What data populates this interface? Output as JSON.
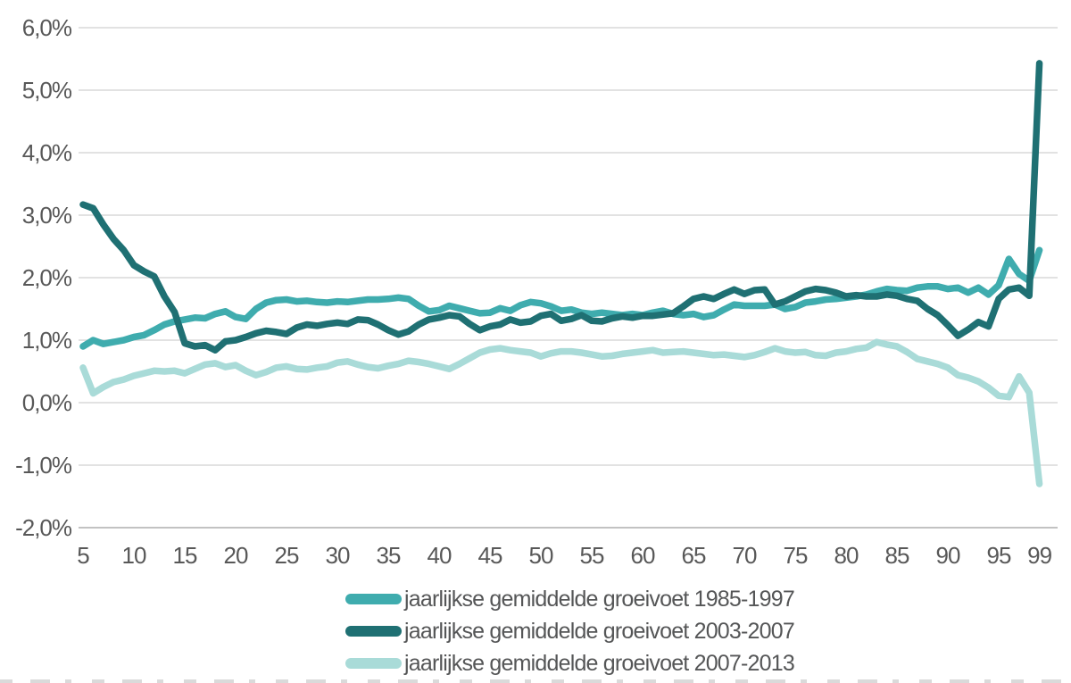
{
  "chart_data": {
    "type": "line",
    "title": "",
    "xlabel": "",
    "ylabel": "",
    "grid": true,
    "legend_position": "bottom",
    "ylim": [
      -2.0,
      6.0
    ],
    "x": [
      5,
      6,
      7,
      8,
      9,
      10,
      11,
      12,
      13,
      14,
      15,
      16,
      17,
      18,
      19,
      20,
      21,
      22,
      23,
      24,
      25,
      26,
      27,
      28,
      29,
      30,
      31,
      32,
      33,
      34,
      35,
      36,
      37,
      38,
      39,
      40,
      41,
      42,
      43,
      44,
      45,
      46,
      47,
      48,
      49,
      50,
      51,
      52,
      53,
      54,
      55,
      56,
      57,
      58,
      59,
      60,
      61,
      62,
      63,
      64,
      65,
      66,
      67,
      68,
      69,
      70,
      71,
      72,
      73,
      74,
      75,
      76,
      77,
      78,
      79,
      80,
      81,
      82,
      83,
      84,
      85,
      86,
      87,
      88,
      89,
      90,
      91,
      92,
      93,
      94,
      95,
      96,
      97,
      98,
      99
    ],
    "xticks": [
      5,
      10,
      15,
      20,
      25,
      30,
      35,
      40,
      45,
      50,
      55,
      60,
      65,
      70,
      75,
      80,
      85,
      90,
      95,
      99
    ],
    "yticks": [
      {
        "label": "6,0%",
        "value": 6.0
      },
      {
        "label": "5,0%",
        "value": 5.0
      },
      {
        "label": "4,0%",
        "value": 4.0
      },
      {
        "label": "3,0%",
        "value": 3.0
      },
      {
        "label": "2,0%",
        "value": 2.0
      },
      {
        "label": "1,0%",
        "value": 1.0
      },
      {
        "label": "0,0%",
        "value": 0.0
      },
      {
        "label": "-1,0%",
        "value": -1.0
      },
      {
        "label": "-2,0%",
        "value": -2.0
      }
    ],
    "series": [
      {
        "name": "jaarlijkse gemiddelde groeivoet 1985-1997",
        "color": "#3FACAE",
        "values": [
          0.9,
          1.0,
          0.94,
          0.97,
          1.0,
          1.05,
          1.08,
          1.16,
          1.25,
          1.3,
          1.33,
          1.36,
          1.35,
          1.42,
          1.46,
          1.37,
          1.34,
          1.5,
          1.6,
          1.64,
          1.65,
          1.62,
          1.63,
          1.61,
          1.6,
          1.62,
          1.61,
          1.63,
          1.65,
          1.65,
          1.66,
          1.68,
          1.66,
          1.55,
          1.46,
          1.48,
          1.55,
          1.51,
          1.47,
          1.43,
          1.44,
          1.51,
          1.47,
          1.56,
          1.61,
          1.59,
          1.54,
          1.47,
          1.49,
          1.44,
          1.42,
          1.44,
          1.42,
          1.4,
          1.42,
          1.4,
          1.44,
          1.47,
          1.42,
          1.4,
          1.42,
          1.37,
          1.4,
          1.49,
          1.57,
          1.55,
          1.55,
          1.55,
          1.57,
          1.5,
          1.53,
          1.6,
          1.62,
          1.65,
          1.66,
          1.68,
          1.7,
          1.73,
          1.78,
          1.82,
          1.8,
          1.79,
          1.84,
          1.86,
          1.86,
          1.82,
          1.84,
          1.76,
          1.84,
          1.73,
          1.88,
          2.3,
          2.06,
          1.95,
          2.44
        ]
      },
      {
        "name": "jaarlijkse gemiddelde groeivoet 2003-2007",
        "color": "#1F7073",
        "values": [
          3.17,
          3.11,
          2.85,
          2.62,
          2.44,
          2.2,
          2.1,
          2.02,
          1.7,
          1.45,
          0.95,
          0.9,
          0.92,
          0.84,
          0.98,
          1.0,
          1.05,
          1.11,
          1.15,
          1.13,
          1.1,
          1.2,
          1.25,
          1.23,
          1.26,
          1.28,
          1.26,
          1.33,
          1.32,
          1.25,
          1.16,
          1.09,
          1.14,
          1.25,
          1.33,
          1.36,
          1.4,
          1.38,
          1.26,
          1.16,
          1.22,
          1.25,
          1.33,
          1.28,
          1.3,
          1.39,
          1.42,
          1.31,
          1.34,
          1.4,
          1.31,
          1.3,
          1.35,
          1.38,
          1.36,
          1.39,
          1.39,
          1.41,
          1.43,
          1.54,
          1.66,
          1.7,
          1.66,
          1.74,
          1.81,
          1.74,
          1.8,
          1.81,
          1.57,
          1.62,
          1.7,
          1.78,
          1.82,
          1.8,
          1.76,
          1.7,
          1.72,
          1.7,
          1.7,
          1.73,
          1.71,
          1.66,
          1.63,
          1.5,
          1.4,
          1.24,
          1.07,
          1.17,
          1.29,
          1.22,
          1.66,
          1.81,
          1.84,
          1.71,
          5.43
        ]
      },
      {
        "name": "jaarlijkse gemiddelde groeivoet 2007-2013",
        "color": "#A9DBD8",
        "values": [
          0.56,
          0.15,
          0.25,
          0.33,
          0.37,
          0.43,
          0.47,
          0.51,
          0.5,
          0.51,
          0.47,
          0.54,
          0.61,
          0.63,
          0.57,
          0.6,
          0.51,
          0.44,
          0.49,
          0.56,
          0.58,
          0.54,
          0.53,
          0.56,
          0.58,
          0.64,
          0.66,
          0.61,
          0.57,
          0.55,
          0.59,
          0.62,
          0.67,
          0.65,
          0.62,
          0.58,
          0.54,
          0.62,
          0.71,
          0.8,
          0.85,
          0.87,
          0.84,
          0.82,
          0.8,
          0.74,
          0.79,
          0.82,
          0.82,
          0.8,
          0.77,
          0.74,
          0.75,
          0.78,
          0.8,
          0.82,
          0.84,
          0.8,
          0.81,
          0.82,
          0.8,
          0.78,
          0.76,
          0.77,
          0.75,
          0.73,
          0.76,
          0.81,
          0.87,
          0.82,
          0.8,
          0.81,
          0.76,
          0.75,
          0.8,
          0.82,
          0.86,
          0.88,
          0.97,
          0.93,
          0.9,
          0.81,
          0.7,
          0.66,
          0.62,
          0.56,
          0.44,
          0.4,
          0.34,
          0.24,
          0.11,
          0.09,
          0.42,
          0.16,
          -1.3
        ]
      }
    ]
  },
  "colors": {
    "gridline": "#d9d9d9",
    "axis_line": "#c2c2c2",
    "tick_text": "#585858",
    "legend_text": "#555657",
    "background": "#ffffff"
  }
}
